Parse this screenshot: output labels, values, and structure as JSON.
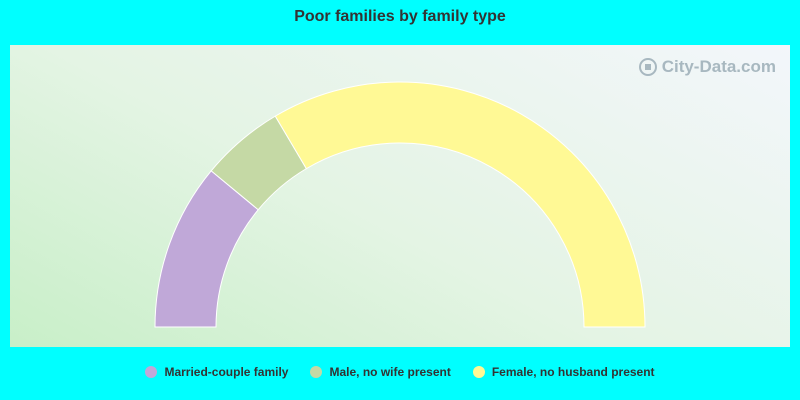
{
  "chart_data": {
    "type": "pie",
    "subtype": "half-donut",
    "title": "Poor families by family type",
    "categories": [
      "Married-couple family",
      "Male, no wife present",
      "Female, no husband present"
    ],
    "values": [
      22,
      11,
      67
    ],
    "colors": [
      "#c0a8d8",
      "#c5d9a5",
      "#fff995"
    ],
    "legend_position": "bottom"
  },
  "watermark": "City-Data.com",
  "watermark_icon": "city-data-logo-icon"
}
